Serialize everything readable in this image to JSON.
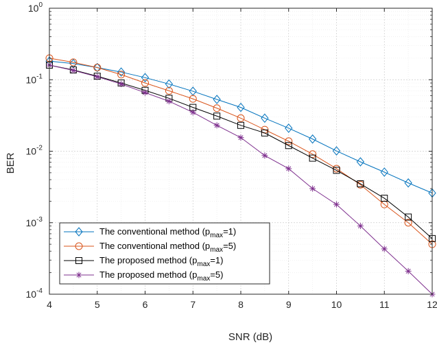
{
  "chart_data": {
    "type": "line",
    "xlabel": "SNR (dB)",
    "ylabel": "BER",
    "xlim": [
      4,
      12
    ],
    "ylim": [
      0.0001,
      1
    ],
    "yscale": "log",
    "grid": true,
    "minor_grid": true,
    "legend_position": "bottom-left",
    "x_ticks": [
      "4",
      "5",
      "6",
      "7",
      "8",
      "9",
      "10",
      "11",
      "12"
    ],
    "y_ticks": [
      {
        "base": "10",
        "exp": "0"
      },
      {
        "base": "10",
        "exp": "-1"
      },
      {
        "base": "10",
        "exp": "-2"
      },
      {
        "base": "10",
        "exp": "-3"
      },
      {
        "base": "10",
        "exp": "-4"
      }
    ],
    "x": [
      4,
      4.5,
      5,
      5.5,
      6,
      6.5,
      7,
      7.5,
      8,
      8.5,
      9,
      9.5,
      10,
      10.5,
      11,
      11.5,
      12
    ],
    "series": [
      {
        "legend": {
          "prefix": "The conventional method (p",
          "sub": "max",
          "suffix": "=1)"
        },
        "color": "#0072BD",
        "marker": "diamond",
        "values": [
          0.182,
          0.168,
          0.148,
          0.128,
          0.107,
          0.087,
          0.069,
          0.053,
          0.041,
          0.029,
          0.021,
          0.0148,
          0.0101,
          0.0071,
          0.0051,
          0.0036,
          0.0026
        ]
      },
      {
        "legend": {
          "prefix": "The conventional method (p",
          "sub": "max",
          "suffix": "=5)"
        },
        "color": "#D95319",
        "marker": "circle",
        "values": [
          0.2,
          0.175,
          0.148,
          0.118,
          0.09,
          0.07,
          0.054,
          0.04,
          0.029,
          0.02,
          0.0138,
          0.0091,
          0.0057,
          0.0034,
          0.0018,
          0.001,
          0.0005
        ]
      },
      {
        "legend": {
          "prefix": "The proposed method (p",
          "sub": "max",
          "suffix": "=1)"
        },
        "color": "#000000",
        "marker": "square",
        "values": [
          0.16,
          0.137,
          0.112,
          0.09,
          0.071,
          0.055,
          0.041,
          0.031,
          0.023,
          0.018,
          0.012,
          0.008,
          0.0054,
          0.0035,
          0.0022,
          0.0012,
          0.0006
        ]
      },
      {
        "legend": {
          "prefix": "The proposed method (p",
          "sub": "max",
          "suffix": "=5)"
        },
        "color": "#7E2F8E",
        "marker": "asterisk",
        "values": [
          0.16,
          0.135,
          0.11,
          0.087,
          0.066,
          0.05,
          0.035,
          0.023,
          0.0155,
          0.0087,
          0.0057,
          0.003,
          0.0018,
          0.0009,
          0.00043,
          0.00021,
          0.0001
        ]
      }
    ]
  }
}
